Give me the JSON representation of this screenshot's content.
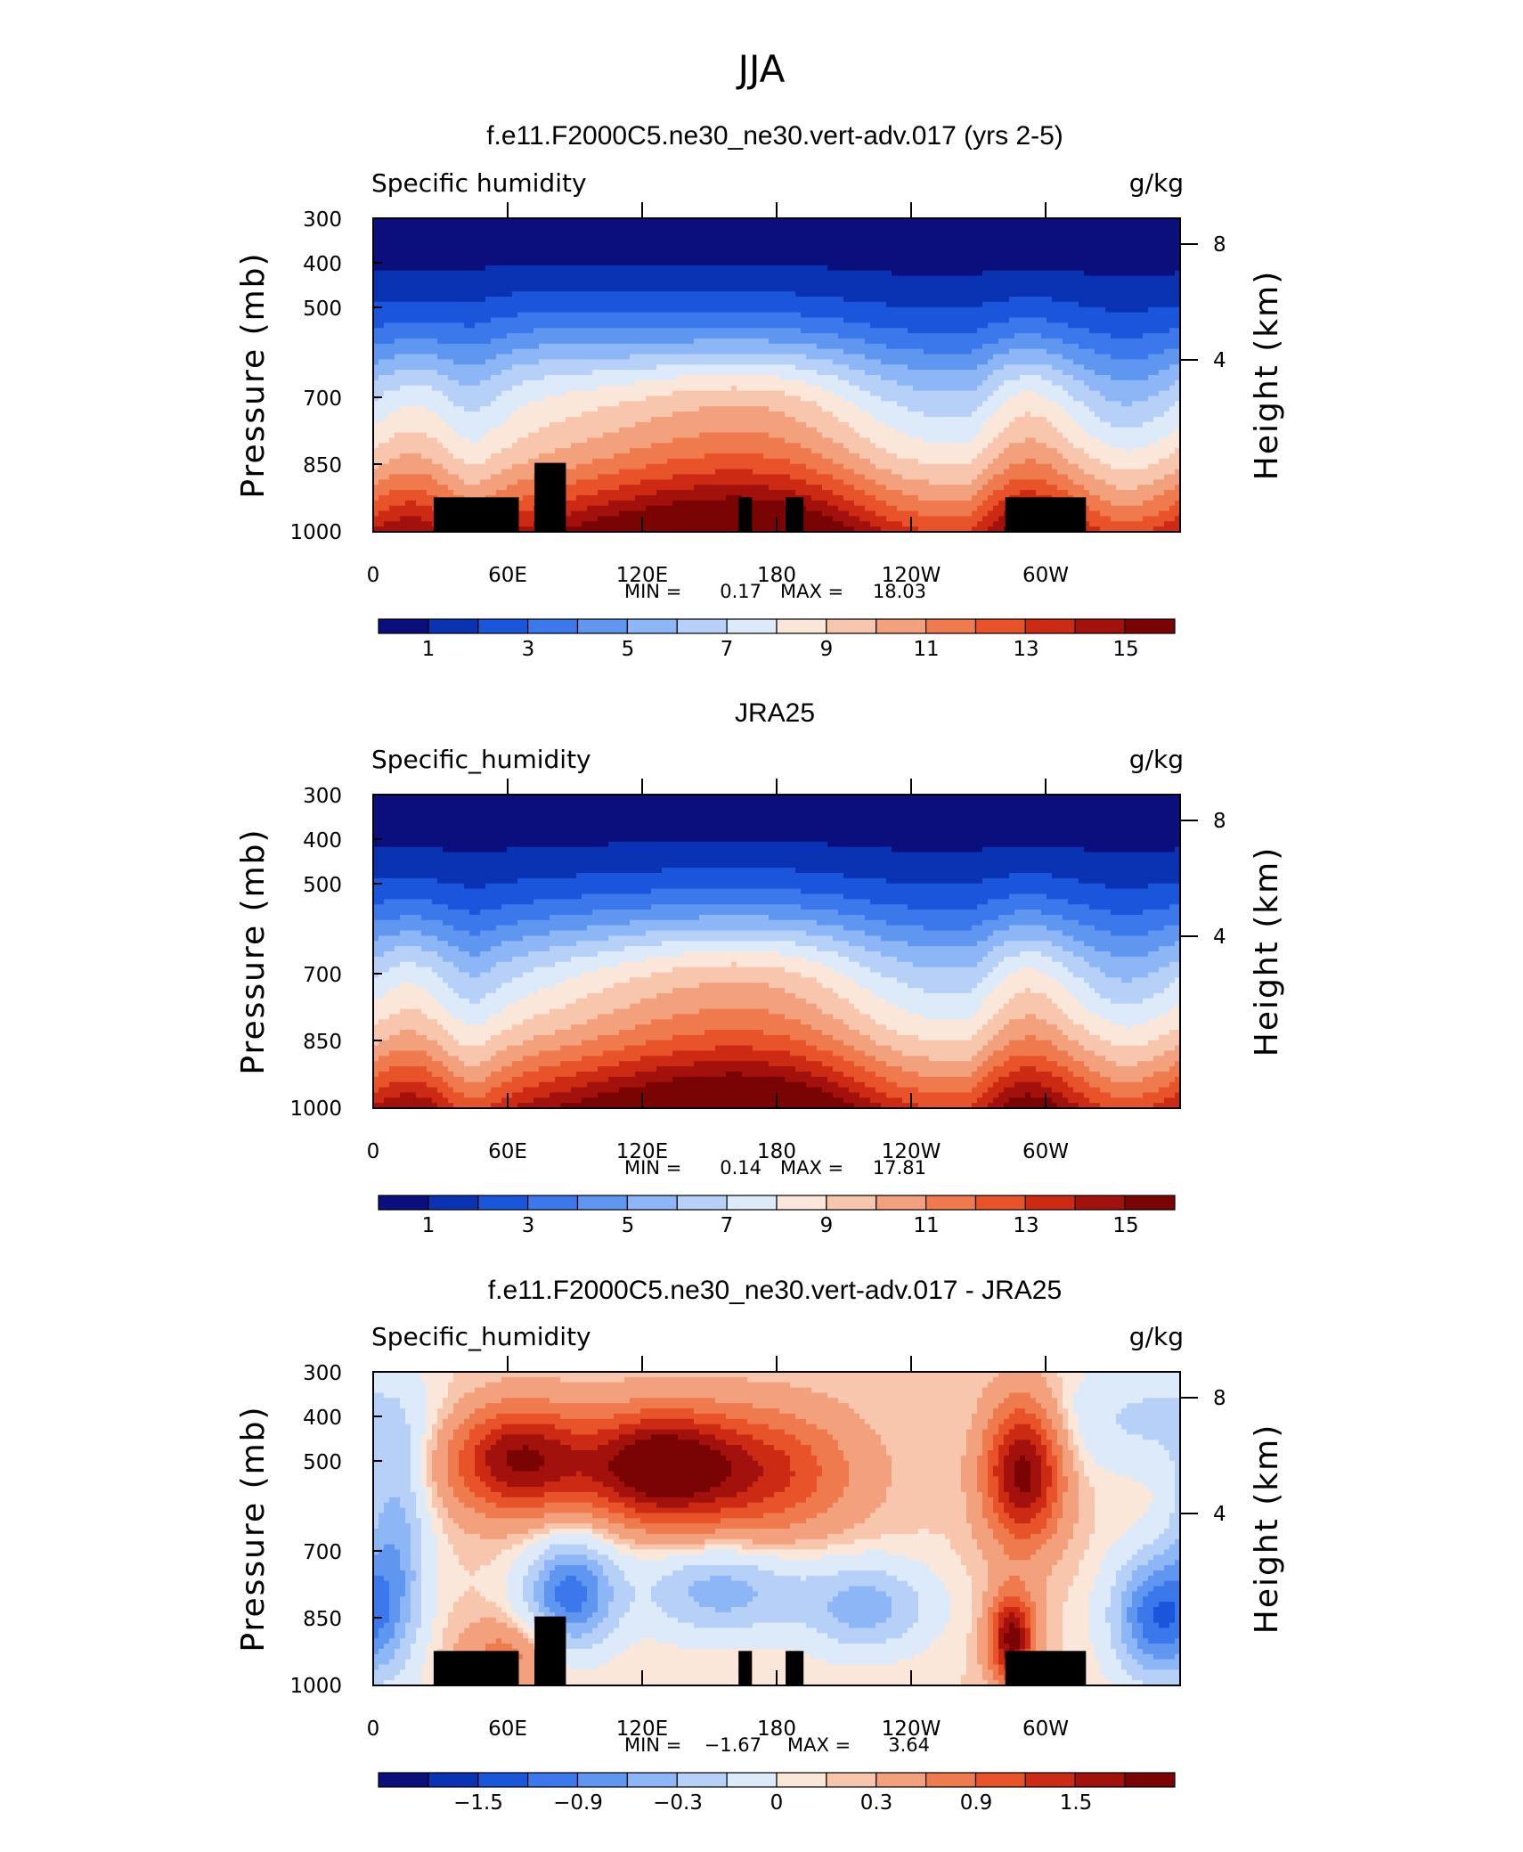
{
  "figure": {
    "super_title": "JJA"
  },
  "palette": {
    "sequential": [
      "#0a0f7d",
      "#0a33b4",
      "#1a56dc",
      "#3a78eb",
      "#5f97f0",
      "#8cb6f5",
      "#b7d0f8",
      "#dceaf9",
      "#fbe7d9",
      "#f7c6ad",
      "#f3a07c",
      "#ef7a4e",
      "#e8532a",
      "#cd2a14",
      "#a3110c",
      "#7a0404"
    ],
    "diverging": [
      "#0a0f7d",
      "#0a33b4",
      "#1a56dc",
      "#3a78eb",
      "#5f97f0",
      "#8cb6f5",
      "#b7d0f8",
      "#dceaf9",
      "#fbe7d9",
      "#f7c6ad",
      "#f3a07c",
      "#ef7a4e",
      "#e8532a",
      "#cd2a14",
      "#a3110c",
      "#7a0404"
    ]
  },
  "chart_data": [
    {
      "type": "heatmap",
      "title": "f.e11.F2000C5.ne30_ne30.vert-adv.017 (yrs 2-5)",
      "left_label": "Specific humidity",
      "units": "g/kg",
      "ylabel": "Pressure (mb)",
      "y2label": "Height (km)",
      "xlabel": "",
      "x_ticks": [
        "0",
        "60E",
        "120E",
        "180",
        "120W",
        "60W"
      ],
      "x_range": [
        0,
        360
      ],
      "y_ticks": [
        "300",
        "400",
        "500",
        "700",
        "850",
        "1000"
      ],
      "y_range_mb": [
        300,
        1000
      ],
      "y2_ticks": [
        "8",
        "4"
      ],
      "min_label": "MIN =",
      "min": "0.17",
      "max_label": "MAX =",
      "max": "18.03",
      "levels": [
        1,
        2,
        3,
        4,
        5,
        6,
        7,
        8,
        9,
        10,
        11,
        12,
        13,
        14,
        15
      ],
      "colorbar_labels": [
        "1",
        "3",
        "5",
        "7",
        "9",
        "11",
        "13",
        "15"
      ],
      "field": "model",
      "topography": true
    },
    {
      "type": "heatmap",
      "title": "JRA25",
      "left_label": "Specific_humidity",
      "units": "g/kg",
      "ylabel": "Pressure (mb)",
      "y2label": "Height (km)",
      "xlabel": "",
      "x_ticks": [
        "0",
        "60E",
        "120E",
        "180",
        "120W",
        "60W"
      ],
      "x_range": [
        0,
        360
      ],
      "y_ticks": [
        "300",
        "400",
        "500",
        "700",
        "850",
        "1000"
      ],
      "y_range_mb": [
        300,
        1000
      ],
      "y2_ticks": [
        "8",
        "4"
      ],
      "min_label": "MIN =",
      "min": "0.14",
      "max_label": "MAX =",
      "max": "17.81",
      "levels": [
        1,
        2,
        3,
        4,
        5,
        6,
        7,
        8,
        9,
        10,
        11,
        12,
        13,
        14,
        15
      ],
      "colorbar_labels": [
        "1",
        "3",
        "5",
        "7",
        "9",
        "11",
        "13",
        "15"
      ],
      "field": "obs",
      "topography": false
    },
    {
      "type": "heatmap",
      "title": "f.e11.F2000C5.ne30_ne30.vert-adv.017 - JRA25",
      "left_label": "Specific_humidity",
      "units": "g/kg",
      "ylabel": "Pressure (mb)",
      "y2label": "Height (km)",
      "xlabel": "",
      "x_ticks": [
        "0",
        "60E",
        "120E",
        "180",
        "120W",
        "60W"
      ],
      "x_range": [
        0,
        360
      ],
      "y_ticks": [
        "300",
        "400",
        "500",
        "700",
        "850",
        "1000"
      ],
      "y_range_mb": [
        300,
        1000
      ],
      "y2_ticks": [
        "8",
        "4"
      ],
      "min_label": "MIN =",
      "min": "−1.67",
      "max_label": "MAX =",
      "max": "3.64",
      "levels": [
        -2.1,
        -1.8,
        -1.5,
        -1.2,
        -0.9,
        -0.6,
        -0.3,
        0,
        0.15,
        0.3,
        0.6,
        0.9,
        1.2,
        1.5,
        1.8
      ],
      "colorbar_labels": [
        "−1.5",
        "−0.9",
        "−0.3",
        "0",
        "0.3",
        "0.9",
        "1.5"
      ],
      "field": "diff",
      "topography": true
    }
  ]
}
